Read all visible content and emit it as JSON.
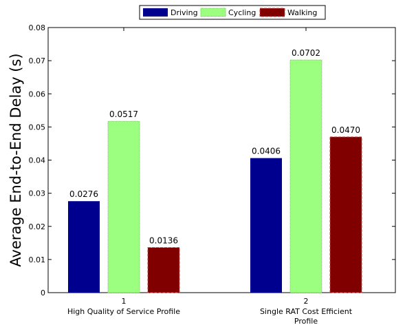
{
  "chart_data": {
    "type": "bar",
    "title": "",
    "xlabel": "",
    "ylabel": "Average End-to-End Delay (s)",
    "ylim": [
      0,
      0.08
    ],
    "yticks": [
      "0",
      "0.01",
      "0.02",
      "0.03",
      "0.04",
      "0.05",
      "0.06",
      "0.07",
      "0.08"
    ],
    "categories": [
      {
        "tick": "1",
        "label_lines": [
          "High Quality of Service Profile"
        ]
      },
      {
        "tick": "2",
        "label_lines": [
          "Single RAT Cost Efficient",
          "Profile"
        ]
      }
    ],
    "series": [
      {
        "name": "Driving",
        "color": "#00008f",
        "values": [
          0.0276,
          0.0406
        ],
        "labels": [
          "0.0276",
          "0.0406"
        ]
      },
      {
        "name": "Cycling",
        "color": "#9dff80",
        "values": [
          0.0517,
          0.0702
        ],
        "labels": [
          "0.0517",
          "0.0702"
        ]
      },
      {
        "name": "Walking",
        "color": "#800000",
        "values": [
          0.0136,
          0.047
        ],
        "labels": [
          "0.0136",
          "0.0470"
        ]
      }
    ],
    "legend_position": "top-center",
    "grid": false
  }
}
